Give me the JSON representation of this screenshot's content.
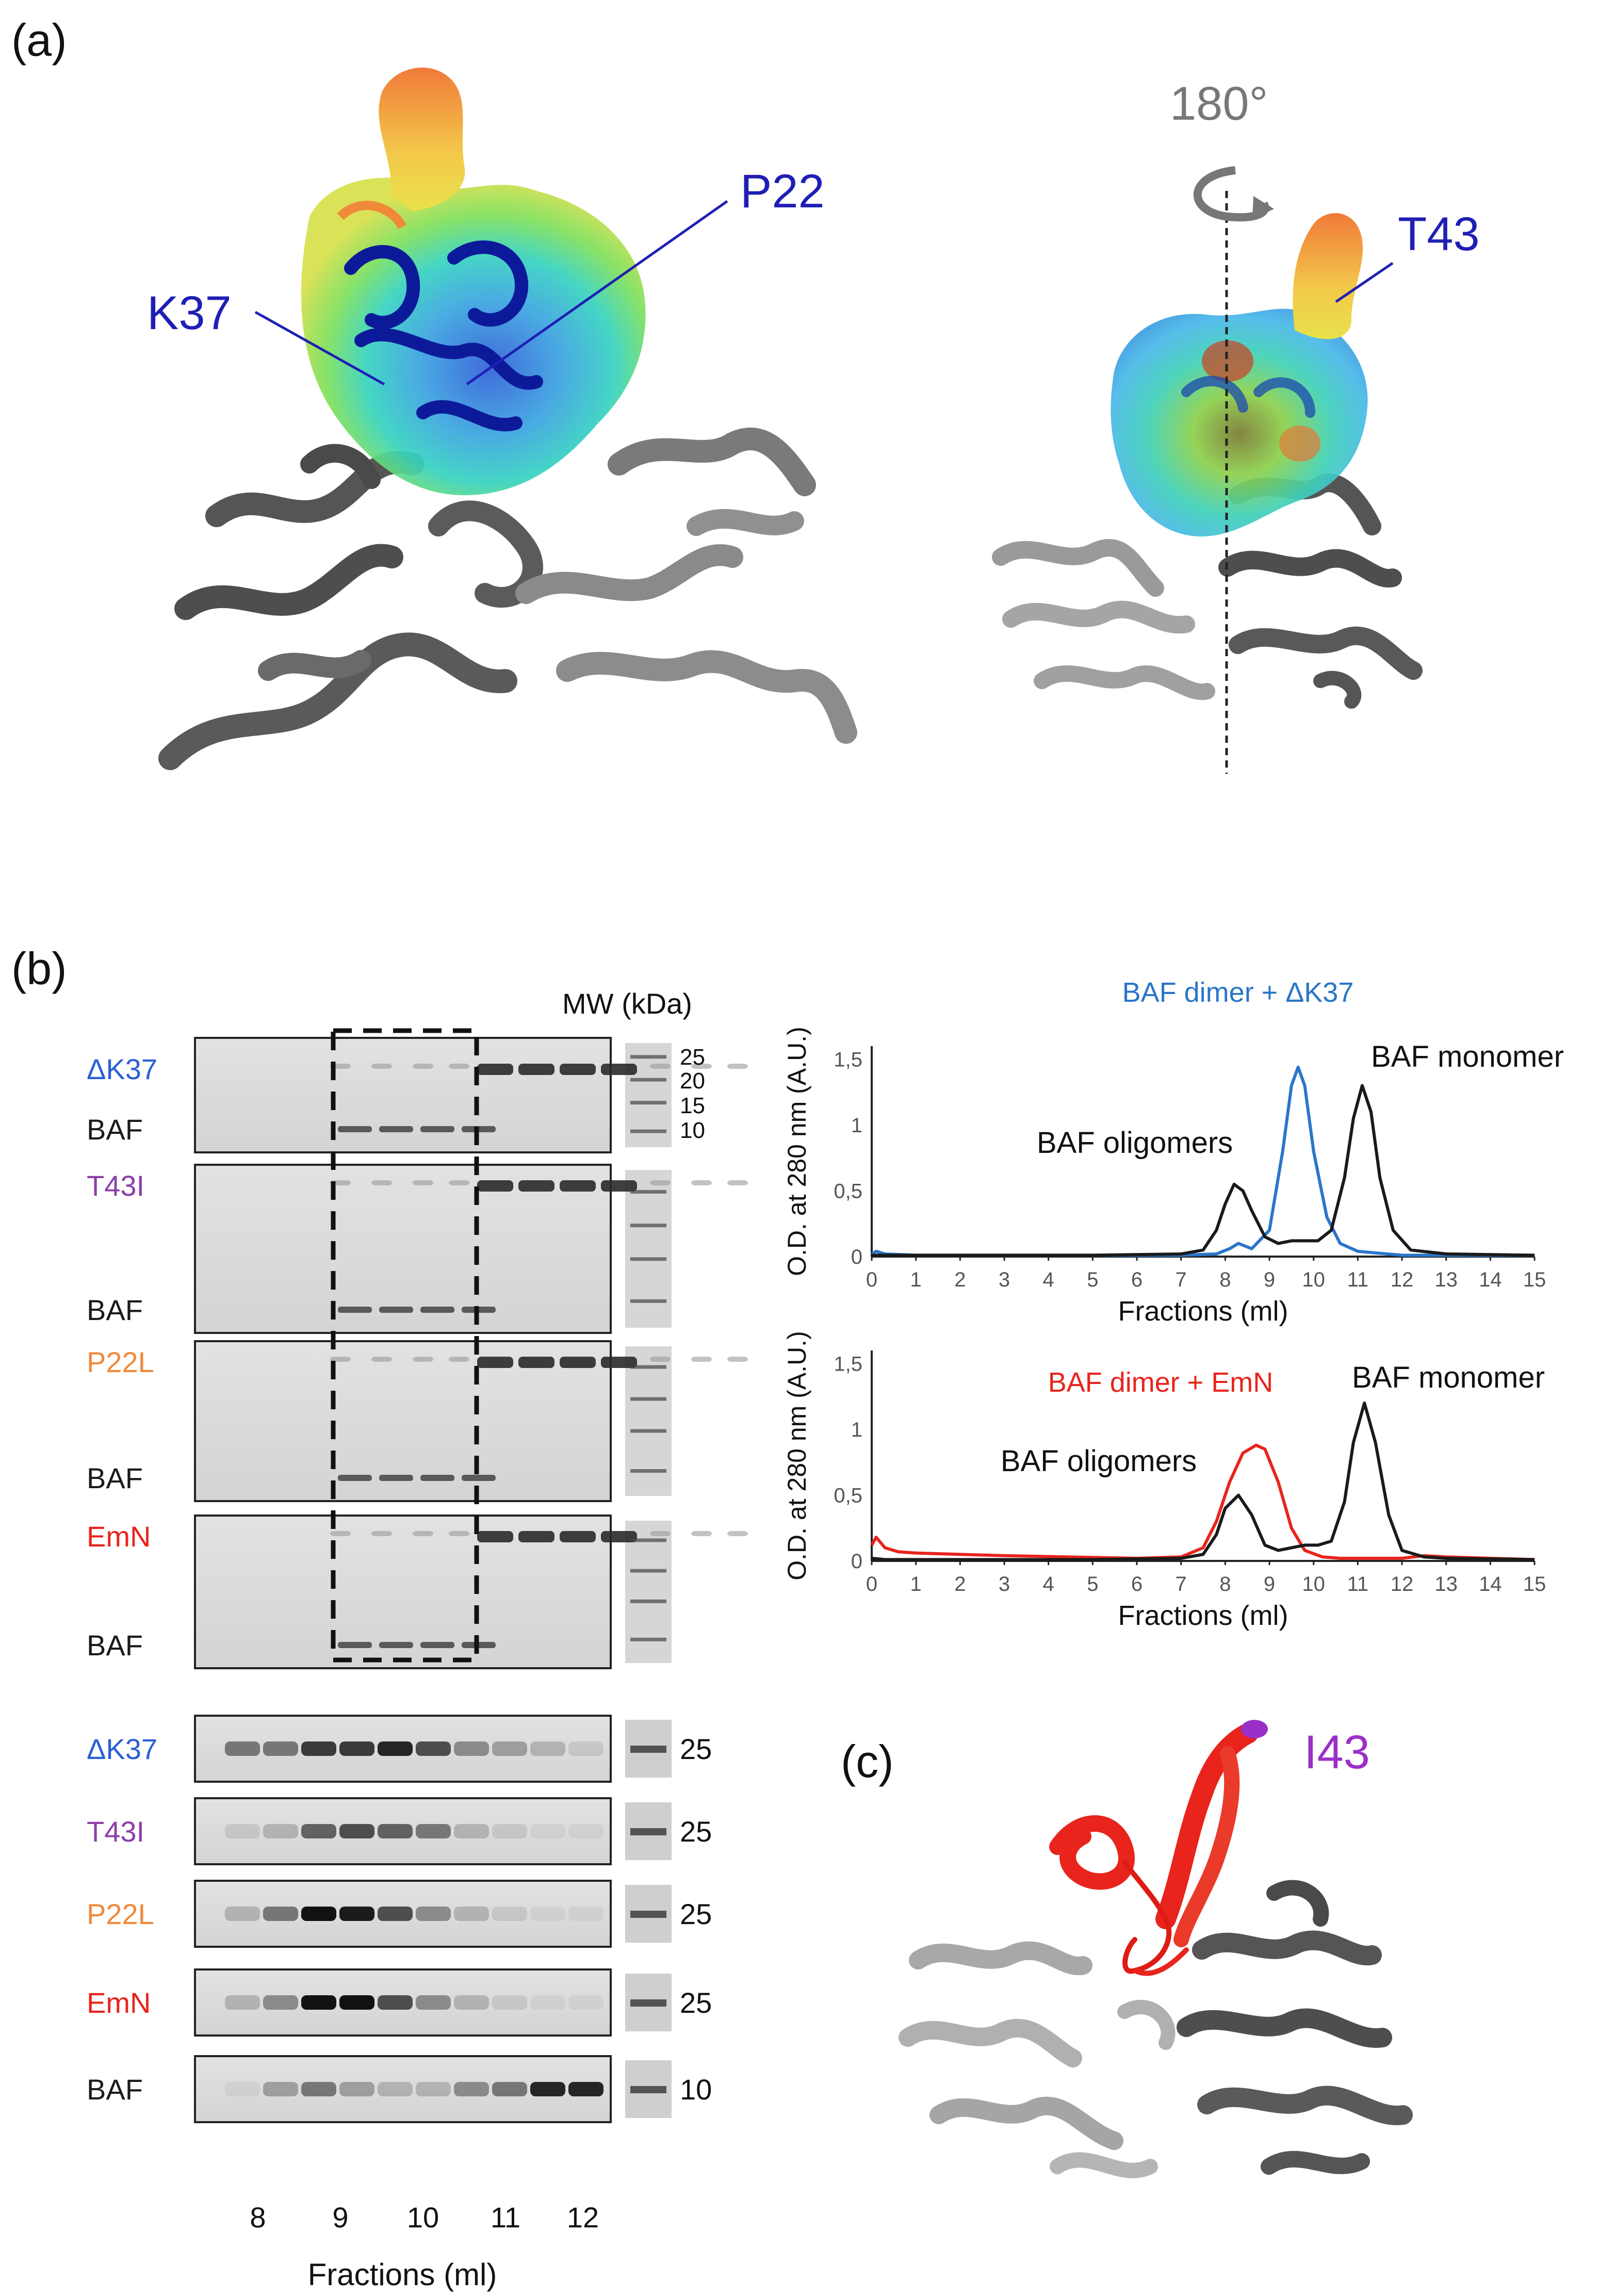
{
  "panel_a": {
    "label": "(a)",
    "rotation": "180°",
    "residues": {
      "k37": "K37",
      "p22": "P22",
      "t43": "T43"
    },
    "label_color": "#1f1fb4"
  },
  "panel_b": {
    "label": "(b)",
    "mw_header": "MW (kDa)",
    "gel_top": {
      "mw_markers": [
        "25",
        "20",
        "15",
        "10"
      ],
      "rows": [
        {
          "variant": "ΔK37",
          "color": "#2a5fd6",
          "baf": "BAF"
        },
        {
          "variant": "T43I",
          "color": "#8b3fa8",
          "baf": "BAF"
        },
        {
          "variant": "P22L",
          "color": "#f08a3c",
          "baf": "BAF"
        },
        {
          "variant": "EmN",
          "color": "#e8241c",
          "baf": "BAF"
        }
      ]
    },
    "gel_bottom": {
      "rows": [
        {
          "variant": "ΔK37",
          "color": "#2a5fd6",
          "mw": "25"
        },
        {
          "variant": "T43I",
          "color": "#8b3fa8",
          "mw": "25"
        },
        {
          "variant": "P22L",
          "color": "#f08a3c",
          "mw": "25"
        },
        {
          "variant": "EmN",
          "color": "#e8241c",
          "mw": "25"
        },
        {
          "variant": "BAF",
          "color": "#1a1a1a",
          "mw": "10"
        }
      ],
      "x_ticks": [
        "8",
        "9",
        "10",
        "11",
        "12"
      ],
      "xlabel": "Fractions (ml)"
    }
  },
  "panel_c": {
    "label": "(c)",
    "residue": "I43",
    "residue_color": "#9b2fc9"
  },
  "chart_data": [
    {
      "type": "line",
      "title": "BAF dimer + ΔK37",
      "title_color": "#2a75c9",
      "xlabel": "Fractions (ml)",
      "ylabel": "O.D. at 280 nm (A.U.)",
      "xlim": [
        0,
        15
      ],
      "ylim": [
        0,
        1.6
      ],
      "x_ticks": [
        "0",
        "1",
        "2",
        "3",
        "4",
        "5",
        "6",
        "7",
        "8",
        "9",
        "10",
        "11",
        "12",
        "13",
        "14",
        "15"
      ],
      "y_ticks": [
        "0",
        "0,5",
        "1",
        "1,5"
      ],
      "y_tick_values": [
        0,
        0.5,
        1,
        1.5
      ],
      "annotations": [
        "BAF oligomers",
        "BAF monomer"
      ],
      "series": [
        {
          "color": "#2a75c9",
          "x": [
            0,
            0.1,
            0.3,
            1,
            5,
            7,
            7.8,
            8.1,
            8.3,
            8.6,
            9,
            9.3,
            9.5,
            9.65,
            9.8,
            10,
            10.3,
            10.6,
            11,
            12,
            13,
            15
          ],
          "y": [
            0.02,
            0.04,
            0.02,
            0.01,
            0.01,
            0.01,
            0.02,
            0.06,
            0.1,
            0.06,
            0.2,
            0.8,
            1.3,
            1.44,
            1.3,
            0.8,
            0.3,
            0.1,
            0.04,
            0.01,
            0.01,
            0.01
          ]
        },
        {
          "color": "#1a1a1a",
          "x": [
            0,
            0.3,
            1,
            5,
            7,
            7.5,
            7.8,
            8.0,
            8.2,
            8.4,
            8.6,
            8.9,
            9.2,
            9.5,
            9.8,
            10.1,
            10.4,
            10.7,
            10.9,
            11.1,
            11.3,
            11.5,
            11.8,
            12.2,
            13,
            15
          ],
          "y": [
            0.01,
            0.01,
            0.01,
            0.01,
            0.02,
            0.05,
            0.2,
            0.4,
            0.55,
            0.5,
            0.35,
            0.15,
            0.1,
            0.12,
            0.12,
            0.12,
            0.2,
            0.6,
            1.05,
            1.3,
            1.1,
            0.6,
            0.2,
            0.05,
            0.02,
            0.01
          ]
        }
      ]
    },
    {
      "type": "line",
      "title": "BAF dimer +  EmN",
      "title_color": "#e8241c",
      "xlabel": "Fractions (ml)",
      "ylabel": "O.D. at 280 nm (A.U.)",
      "xlim": [
        0,
        15
      ],
      "ylim": [
        0,
        1.6
      ],
      "x_ticks": [
        "0",
        "1",
        "2",
        "3",
        "4",
        "5",
        "6",
        "7",
        "8",
        "9",
        "10",
        "11",
        "12",
        "13",
        "14",
        "15"
      ],
      "y_ticks": [
        "0",
        "0,5",
        "1",
        "1,5"
      ],
      "y_tick_values": [
        0,
        0.5,
        1,
        1.5
      ],
      "annotations": [
        "BAF oligomers",
        "BAF monomer"
      ],
      "series": [
        {
          "color": "#e8241c",
          "x": [
            0,
            0.1,
            0.3,
            0.6,
            1,
            3,
            6,
            7,
            7.5,
            7.8,
            8.1,
            8.4,
            8.7,
            8.9,
            9.2,
            9.5,
            9.8,
            10.2,
            10.6,
            11,
            12,
            12.5,
            13,
            15
          ],
          "y": [
            0.12,
            0.18,
            0.1,
            0.07,
            0.06,
            0.04,
            0.02,
            0.03,
            0.1,
            0.3,
            0.6,
            0.82,
            0.88,
            0.85,
            0.6,
            0.25,
            0.08,
            0.03,
            0.02,
            0.02,
            0.02,
            0.04,
            0.03,
            0.01
          ]
        },
        {
          "color": "#1a1a1a",
          "x": [
            0,
            0.3,
            1,
            5,
            7,
            7.5,
            7.8,
            8.0,
            8.3,
            8.6,
            8.9,
            9.2,
            9.5,
            9.8,
            10.1,
            10.4,
            10.7,
            10.9,
            11.15,
            11.4,
            11.7,
            12,
            12.5,
            13,
            15
          ],
          "y": [
            0.02,
            0.01,
            0.01,
            0.01,
            0.02,
            0.05,
            0.2,
            0.4,
            0.5,
            0.35,
            0.12,
            0.08,
            0.1,
            0.12,
            0.12,
            0.15,
            0.45,
            0.9,
            1.2,
            0.9,
            0.35,
            0.08,
            0.03,
            0.02,
            0.01
          ]
        }
      ]
    }
  ]
}
